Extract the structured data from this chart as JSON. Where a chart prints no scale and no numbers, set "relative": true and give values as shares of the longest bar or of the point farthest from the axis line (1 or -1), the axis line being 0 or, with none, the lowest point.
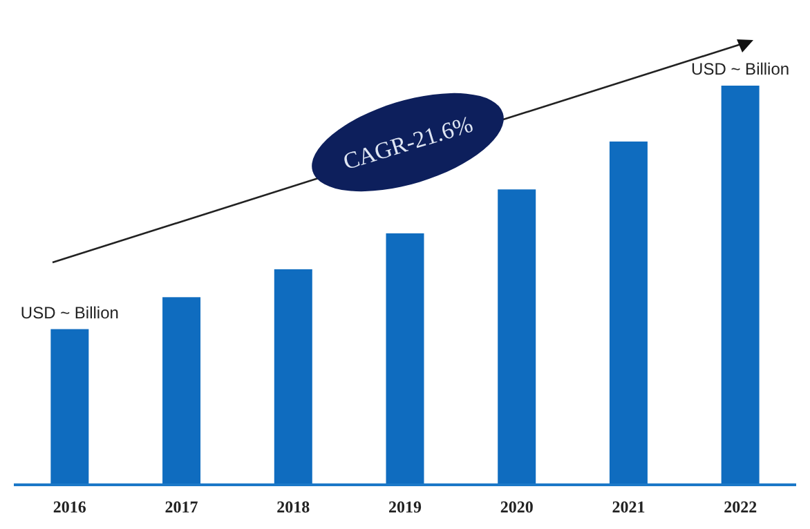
{
  "chart_data": {
    "type": "bar",
    "relative": true,
    "categories": [
      "2016",
      "2017",
      "2018",
      "2019",
      "2020",
      "2021",
      "2022"
    ],
    "values": [
      0.39,
      0.47,
      0.54,
      0.63,
      0.74,
      0.86,
      1
    ],
    "color": "#0f6cbf",
    "annotations": [
      "USD ~ Billion",
      "USD ~ Billion",
      "CAGR-21.6%"
    ]
  }
}
